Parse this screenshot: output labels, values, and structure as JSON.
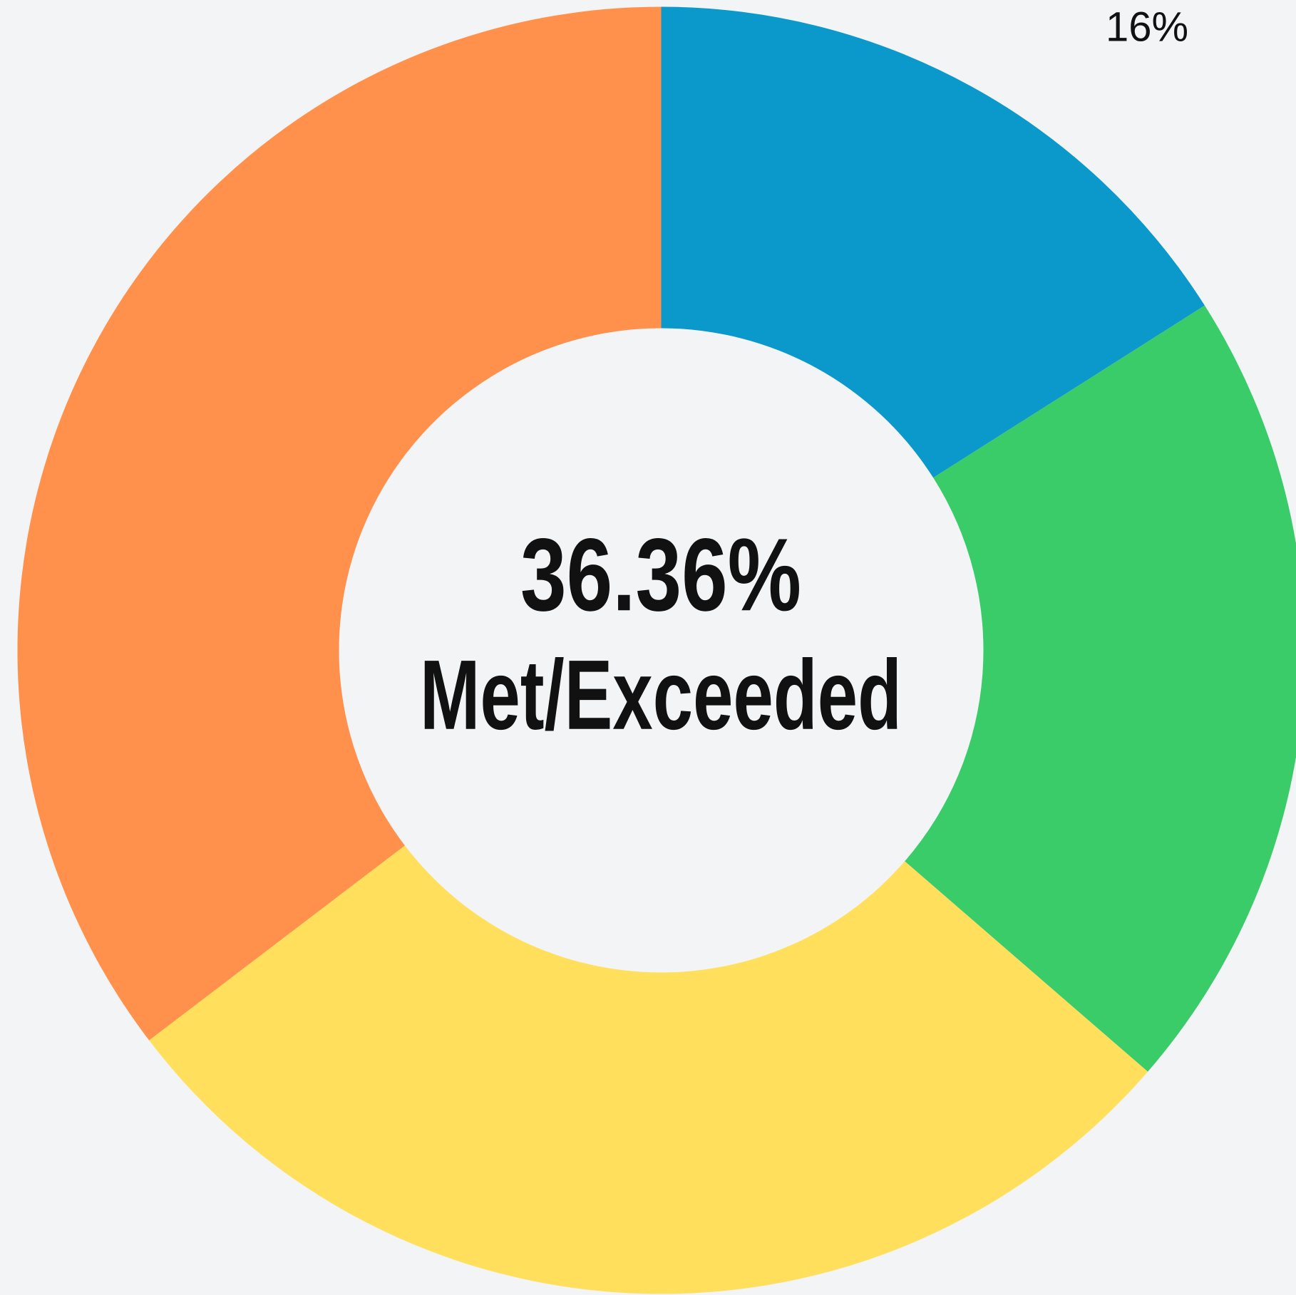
{
  "chart_data": {
    "type": "donut",
    "categories": [
      null,
      null,
      null,
      null
    ],
    "values": [
      16,
      20.36,
      28.28,
      35.36
    ],
    "value_labels": [
      "16%",
      null,
      null,
      null
    ],
    "colors": [
      "#0b98cb",
      "#3acc68",
      "#ffdf5c",
      "#ff914c"
    ],
    "annotations": [
      "36.36%",
      "Met/Exceeded"
    ]
  }
}
